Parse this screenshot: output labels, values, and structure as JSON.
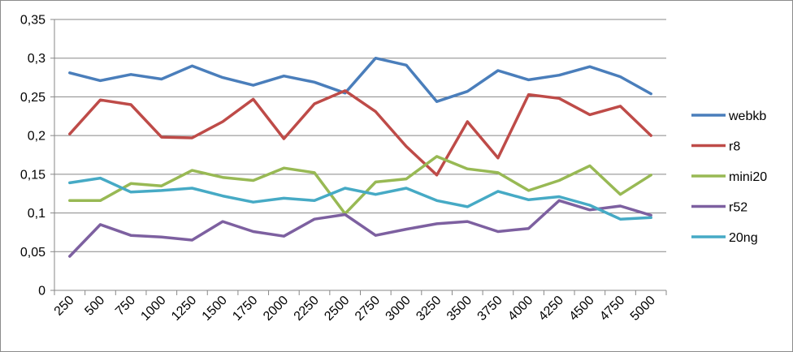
{
  "chart_data": {
    "type": "line",
    "title": "",
    "xlabel": "",
    "ylabel": "",
    "ylim": [
      0,
      0.35
    ],
    "yticks": [
      0,
      0.05,
      0.1,
      0.15,
      0.2,
      0.25,
      0.3,
      0.35
    ],
    "ytick_labels": [
      "0",
      "0,05",
      "0,1",
      "0,15",
      "0,2",
      "0,25",
      "0,3",
      "0,35"
    ],
    "categories": [
      "250",
      "500",
      "750",
      "1000",
      "1250",
      "1500",
      "1750",
      "2000",
      "2250",
      "2500",
      "2750",
      "3000",
      "3250",
      "3500",
      "3750",
      "4000",
      "4250",
      "4500",
      "4750",
      "5000"
    ],
    "grid": "horizontal",
    "legend_position": "right",
    "series": [
      {
        "name": "webkb",
        "color": "#4a7ebb",
        "values": [
          0.281,
          0.271,
          0.279,
          0.273,
          0.29,
          0.275,
          0.265,
          0.277,
          0.269,
          0.255,
          0.3,
          0.291,
          0.244,
          0.257,
          0.284,
          0.272,
          0.278,
          0.289,
          0.276,
          0.254
        ]
      },
      {
        "name": "r8",
        "color": "#be4b48",
        "values": [
          0.202,
          0.246,
          0.24,
          0.198,
          0.197,
          0.218,
          0.247,
          0.196,
          0.241,
          0.258,
          0.231,
          0.186,
          0.149,
          0.218,
          0.171,
          0.253,
          0.248,
          0.227,
          0.238,
          0.2
        ]
      },
      {
        "name": "mini20",
        "color": "#98b954",
        "values": [
          0.116,
          0.116,
          0.138,
          0.135,
          0.155,
          0.146,
          0.142,
          0.158,
          0.152,
          0.099,
          0.14,
          0.144,
          0.173,
          0.157,
          0.152,
          0.129,
          0.142,
          0.161,
          0.124,
          0.149
        ]
      },
      {
        "name": "r52",
        "color": "#7d60a0",
        "values": [
          0.044,
          0.085,
          0.071,
          0.069,
          0.065,
          0.089,
          0.076,
          0.07,
          0.092,
          0.098,
          0.071,
          0.079,
          0.086,
          0.089,
          0.076,
          0.08,
          0.116,
          0.104,
          0.109,
          0.097
        ]
      },
      {
        "name": "20ng",
        "color": "#46aac5",
        "values": [
          0.139,
          0.145,
          0.127,
          0.129,
          0.132,
          0.122,
          0.114,
          0.119,
          0.116,
          0.132,
          0.124,
          0.132,
          0.116,
          0.108,
          0.128,
          0.117,
          0.121,
          0.11,
          0.092,
          0.094
        ]
      }
    ]
  }
}
